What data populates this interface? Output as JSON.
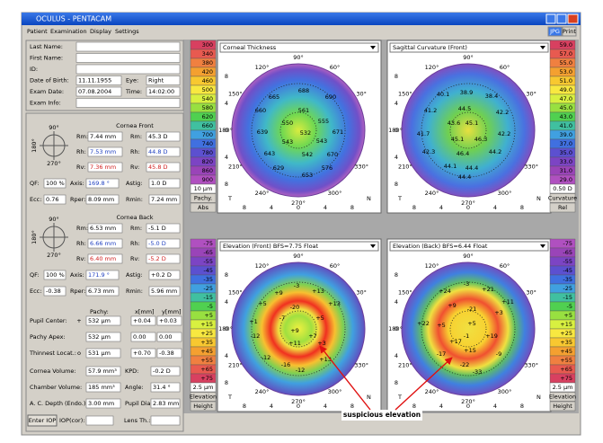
{
  "window": {
    "title": "OCULUS - PENTACAM",
    "menu": [
      "Patient",
      "Examination",
      "Display",
      "Settings"
    ],
    "buttons": [
      "JPG",
      "Print"
    ]
  },
  "patient": [
    [
      "Last Name:"
    ],
    [
      "First Name:"
    ],
    [
      "ID:"
    ],
    [
      "Date of Birth:",
      "11.11.1955",
      "Eye:",
      "Right"
    ],
    [
      "Exam Date:",
      "07.08.2004",
      "Time:",
      "14:02:00"
    ],
    [
      "Exam Info:"
    ]
  ],
  "cornea_front": {
    "title": "Cornea Front",
    "compass": [
      "90°",
      "180°",
      "270°"
    ],
    "radii": [
      [
        "Rm:",
        "7.44 mm",
        "Rm:",
        "45.3 D"
      ],
      [
        "Rh:",
        "7.53 mm",
        "Rh:",
        "44.8 D"
      ],
      [
        "Rv:",
        "7.36 mm",
        "Rv:",
        "45.8 D"
      ]
    ],
    "shape": [
      [
        "QF:",
        "100 %",
        "Axis:",
        "169.8 °",
        "Astig:",
        "1.0 D"
      ],
      [
        "Ecc:",
        "0.76",
        "Rper:",
        "8.09 mm",
        "Rmin:",
        "7.24 mm"
      ]
    ]
  },
  "cornea_back": {
    "title": "Cornea Back",
    "compass": [
      "90°",
      "180°",
      "270°"
    ],
    "radii": [
      [
        "Rm:",
        "6.53 mm",
        "Rm:",
        "-5.1 D"
      ],
      [
        "Rh:",
        "6.66 mm",
        "Rh:",
        "-5.0 D"
      ],
      [
        "Rv:",
        "6.40 mm",
        "Rv:",
        "-5.2 D"
      ]
    ],
    "shape": [
      [
        "QF:",
        "100 %",
        "Axis:",
        "171.9 °",
        "Astig:",
        "+0.2 D"
      ],
      [
        "Ecc:",
        "-0.38",
        "Rper:",
        "6.73 mm",
        "Rmin:",
        "5.96 mm"
      ]
    ]
  },
  "pachy": {
    "header": [
      "Pachy:",
      "x[mm]",
      "y[mm]"
    ],
    "rows": [
      {
        "label": "Pupil Center:",
        "symbol": "+",
        "cells": [
          "532 µm",
          "+0.04",
          "+0.03"
        ]
      },
      {
        "label": "Pachy Apex:",
        "cells": [
          "532 µm",
          "0.00",
          "0.00"
        ]
      },
      {
        "label": "Thinnest Locat.:",
        "symbol": "o",
        "cells": [
          "531 µm",
          "+0.70",
          "-0.38"
        ]
      }
    ]
  },
  "volumes": [
    [
      "Cornea Volume:",
      "57.9 mm³",
      "KPD:",
      "-0.2 D"
    ],
    [
      "Chamber Volume:",
      "185 mm³",
      "Angle:",
      "31.4 °"
    ],
    [
      "A. C. Depth (Endo.):",
      "3.00 mm",
      "Pupil Dia:",
      "2.83 mm"
    ]
  ],
  "footer": {
    "button": "Enter IOP",
    "fields": [
      "IOP(cor):",
      "Lens Th.:"
    ]
  },
  "map_axes": {
    "ticks": [
      "8",
      "4",
      "0",
      "4",
      "8"
    ],
    "left": "T",
    "right": "N",
    "angles": [
      "90°",
      "120°",
      "60°",
      "150°",
      "30°",
      "180°",
      "210°",
      "330°",
      "240°",
      "300°",
      "270°"
    ]
  },
  "maps": [
    {
      "title": "Corneal Thickness",
      "scale": [
        "300",
        "340",
        "380",
        "420",
        "460",
        "500",
        "540",
        "580",
        "620",
        "660",
        "700",
        "740",
        "780",
        "820",
        "860",
        "900"
      ],
      "step": "10 µm",
      "kind": "Pachy.",
      "mode": "Abs",
      "numbers": [
        "688",
        "665",
        "690",
        "660",
        "561",
        "555",
        "639",
        "550",
        "532",
        "671",
        "543",
        "543",
        "643",
        "542",
        "670",
        "629",
        "576",
        "653"
      ]
    },
    {
      "title": "Sagittal Curvature (Front)",
      "scale": [
        "59.0",
        "57.0",
        "55.0",
        "53.0",
        "51.0",
        "49.0",
        "47.0",
        "45.0",
        "43.0",
        "41.0",
        "39.0",
        "37.0",
        "35.0",
        "33.0",
        "31.0",
        "29.0"
      ],
      "step": "0.50 D",
      "kind": "Curvature",
      "mode": "Rel",
      "numbers": [
        "40.1",
        "38.9",
        "38.4",
        "41.2",
        "44.5",
        "42.2",
        "41.7",
        "43.6",
        "45.1",
        "42.2",
        "45.1",
        "46.3",
        "42.3",
        "46.4",
        "44.2",
        "44.1",
        "44.4",
        "44.4"
      ]
    },
    {
      "title": "Elevation (Front)  BFS=7.75 Float",
      "scale": [
        "-75",
        "-65",
        "-55",
        "-45",
        "-35",
        "-25",
        "-15",
        "-5",
        "+5",
        "+15",
        "+25",
        "+35",
        "+45",
        "+55",
        "+65",
        "+75"
      ],
      "step": "2.5 µm",
      "kind": "Elevation",
      "mode": "Height",
      "numbers": [
        "-3",
        "+9",
        "+13",
        "+5",
        "+13",
        "-20",
        "+1",
        "-7",
        "+5",
        "+9",
        "+7",
        "-12",
        "+11",
        "+3",
        "-12",
        "-16",
        "+13",
        "-12"
      ]
    },
    {
      "title": "Elevation (Back)  BFS=6.44 Float",
      "scale": [
        "-75",
        "-65",
        "-55",
        "-45",
        "-35",
        "-25",
        "-15",
        "-5",
        "+5",
        "+15",
        "+25",
        "+35",
        "+45",
        "+55",
        "+65",
        "+75"
      ],
      "step": "2.5 µm",
      "kind": "Elevation",
      "mode": "Height",
      "numbers": [
        "-3",
        "+24",
        "+21",
        "+11",
        "+9",
        "-21",
        "+3",
        "+22",
        "+5",
        "+5",
        "+19",
        "-1",
        "+17",
        "-17",
        "+15",
        "-9",
        "-22",
        "-33"
      ]
    }
  ],
  "annotation": "suspicious elevation"
}
